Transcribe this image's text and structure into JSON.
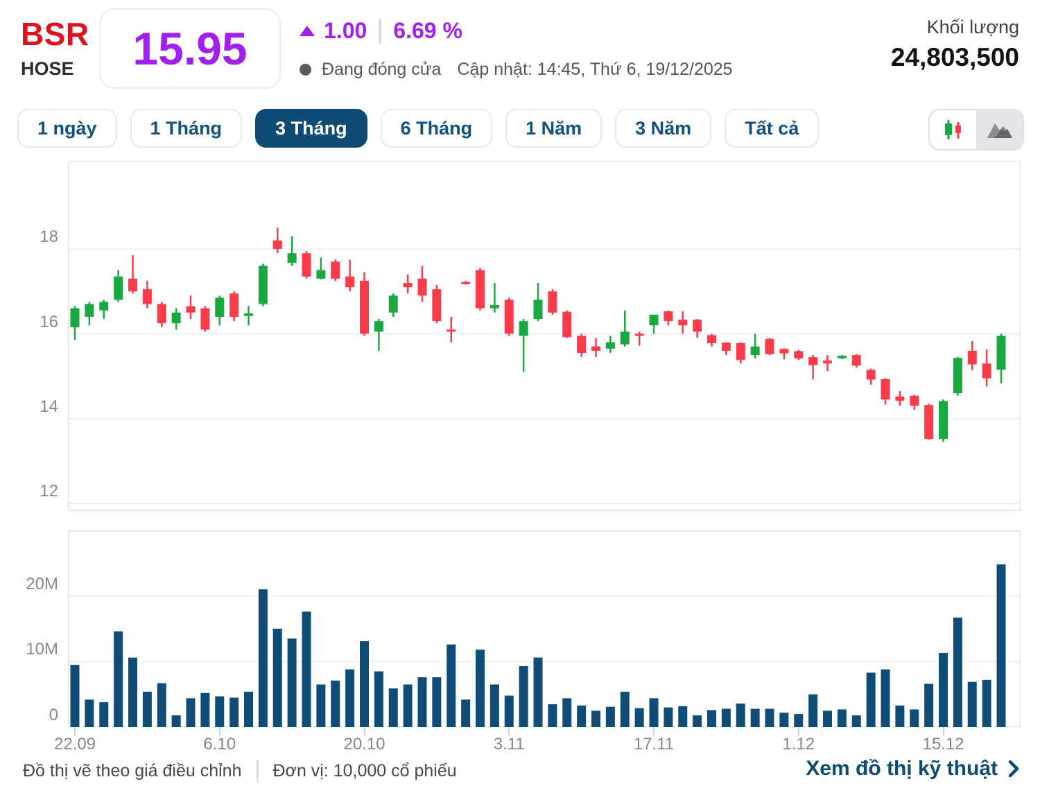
{
  "header": {
    "ticker": "BSR",
    "exchange": "HOSE",
    "price": "15.95",
    "change": "1.00",
    "change_pct": "6.69 %",
    "status": "Đang đóng cửa",
    "updated": "Cập nhật: 14:45, Thứ 6, 19/12/2025",
    "volume_label": "Khối lượng",
    "volume_value": "24,803,500"
  },
  "toolbar": {
    "ranges": [
      {
        "label": "1 ngày"
      },
      {
        "label": "1 Tháng"
      },
      {
        "label": "3 Tháng"
      },
      {
        "label": "6 Tháng"
      },
      {
        "label": "1 Năm"
      },
      {
        "label": "3 Năm"
      },
      {
        "label": "Tất cả"
      }
    ],
    "active_index": 2,
    "chart_type_toggle": {
      "options": [
        {
          "name": "candlestick"
        },
        {
          "name": "area"
        }
      ],
      "active_index": 1
    }
  },
  "footer": {
    "note_left": "Đồ thị vẽ theo giá điều chỉnh",
    "note_right": "Đơn vị: 10,000 cổ phiếu",
    "link": "Xem đồ thị kỹ thuật"
  },
  "colors": {
    "up_green": "#1aa840",
    "down_red": "#fc3b4b",
    "volume_navy": "#0f4d78",
    "price_purple": "#a21ff0",
    "ticker_red": "#e0111f",
    "navy": "#0d4a74",
    "axis_text_gray": "#86868c"
  },
  "chart_data": {
    "type": "candlestick",
    "title": "BSR 3 Tháng price chart with volume",
    "y_axis": {
      "ticks": [
        18,
        16,
        14,
        12
      ],
      "min": 11.8,
      "max": 20.1
    },
    "volume_axis": {
      "max": 30,
      "ticks": [
        {
          "v": 20,
          "label": "20M"
        },
        {
          "v": 10,
          "label": "10M"
        },
        {
          "v": 0,
          "label": "0"
        }
      ]
    },
    "x_ticks": [
      {
        "index": 0,
        "label": "22.09"
      },
      {
        "index": 10,
        "label": "6.10"
      },
      {
        "index": 20,
        "label": "20.10"
      },
      {
        "index": 30,
        "label": "3.11"
      },
      {
        "index": 40,
        "label": "17.11"
      },
      {
        "index": 50,
        "label": "1.12"
      },
      {
        "index": 60,
        "label": "15.12"
      }
    ],
    "candles_ohlc": [
      [
        16.15,
        16.65,
        15.85,
        16.6
      ],
      [
        16.4,
        16.75,
        16.2,
        16.7
      ],
      [
        16.55,
        16.8,
        16.35,
        16.75
      ],
      [
        16.8,
        17.5,
        16.75,
        17.35
      ],
      [
        17.3,
        17.85,
        16.95,
        17.0
      ],
      [
        17.05,
        17.25,
        16.6,
        16.7
      ],
      [
        16.7,
        16.75,
        16.15,
        16.25
      ],
      [
        16.25,
        16.6,
        16.1,
        16.5
      ],
      [
        16.65,
        16.9,
        16.35,
        16.5
      ],
      [
        16.6,
        16.65,
        16.05,
        16.1
      ],
      [
        16.4,
        16.9,
        16.2,
        16.85
      ],
      [
        16.95,
        17.0,
        16.3,
        16.4
      ],
      [
        16.42,
        16.65,
        16.2,
        16.48
      ],
      [
        16.7,
        17.65,
        16.65,
        17.6
      ],
      [
        18.2,
        18.5,
        17.9,
        18.0
      ],
      [
        17.67,
        18.3,
        17.6,
        17.9
      ],
      [
        17.9,
        17.95,
        17.3,
        17.35
      ],
      [
        17.3,
        17.8,
        17.28,
        17.5
      ],
      [
        17.7,
        17.75,
        17.25,
        17.3
      ],
      [
        17.35,
        17.75,
        17.0,
        17.1
      ],
      [
        17.25,
        17.45,
        15.95,
        16.0
      ],
      [
        16.05,
        16.35,
        15.6,
        16.3
      ],
      [
        16.5,
        16.95,
        16.4,
        16.9
      ],
      [
        17.2,
        17.4,
        16.95,
        17.1
      ],
      [
        17.3,
        17.6,
        16.75,
        16.9
      ],
      [
        17.05,
        17.15,
        16.25,
        16.3
      ],
      [
        16.1,
        16.4,
        15.8,
        16.05
      ],
      [
        17.22,
        17.24,
        17.16,
        17.18
      ],
      [
        17.5,
        17.55,
        16.55,
        16.6
      ],
      [
        16.6,
        17.2,
        16.5,
        16.68
      ],
      [
        16.8,
        16.85,
        15.95,
        16.0
      ],
      [
        15.95,
        16.35,
        15.1,
        16.3
      ],
      [
        16.35,
        17.2,
        16.3,
        16.8
      ],
      [
        17.0,
        17.05,
        16.45,
        16.5
      ],
      [
        16.52,
        16.55,
        15.9,
        15.92
      ],
      [
        15.95,
        16.0,
        15.45,
        15.55
      ],
      [
        15.7,
        15.9,
        15.45,
        15.6
      ],
      [
        15.65,
        15.95,
        15.55,
        15.8
      ],
      [
        15.75,
        16.55,
        15.7,
        16.05
      ],
      [
        16.0,
        16.05,
        15.72,
        15.98
      ],
      [
        16.2,
        16.45,
        16.0,
        16.45
      ],
      [
        16.53,
        16.55,
        16.2,
        16.3
      ],
      [
        16.33,
        16.53,
        16.0,
        16.2
      ],
      [
        16.33,
        16.35,
        15.9,
        16.05
      ],
      [
        15.97,
        16.0,
        15.7,
        15.78
      ],
      [
        15.79,
        15.8,
        15.5,
        15.6
      ],
      [
        15.78,
        15.8,
        15.3,
        15.38
      ],
      [
        15.5,
        16.0,
        15.42,
        15.7
      ],
      [
        15.88,
        15.9,
        15.5,
        15.52
      ],
      [
        15.64,
        15.66,
        15.4,
        15.54
      ],
      [
        15.59,
        15.62,
        15.38,
        15.42
      ],
      [
        15.45,
        15.5,
        14.93,
        15.26
      ],
      [
        15.37,
        15.5,
        15.12,
        15.3
      ],
      [
        15.42,
        15.5,
        15.4,
        15.48
      ],
      [
        15.5,
        15.52,
        15.2,
        15.25
      ],
      [
        15.15,
        15.18,
        14.8,
        14.92
      ],
      [
        14.93,
        14.95,
        14.33,
        14.45
      ],
      [
        14.52,
        14.65,
        14.3,
        14.42
      ],
      [
        14.54,
        14.56,
        14.2,
        14.3
      ],
      [
        14.32,
        14.35,
        13.5,
        13.52
      ],
      [
        13.52,
        14.45,
        13.45,
        14.41
      ],
      [
        14.6,
        15.45,
        14.54,
        15.43
      ],
      [
        15.6,
        15.83,
        15.14,
        15.28
      ],
      [
        15.3,
        15.63,
        14.76,
        14.95
      ],
      [
        15.15,
        16.0,
        14.83,
        15.95
      ]
    ],
    "volumes_m": [
      9.5,
      4.2,
      3.8,
      14.6,
      10.6,
      5.4,
      6.7,
      1.8,
      4.4,
      5.2,
      4.7,
      4.5,
      5.4,
      21.0,
      15.0,
      13.5,
      17.6,
      6.5,
      7.1,
      8.8,
      13.1,
      8.5,
      5.9,
      6.5,
      7.6,
      7.6,
      12.6,
      4.2,
      11.8,
      6.5,
      4.8,
      9.3,
      10.6,
      3.5,
      4.4,
      3.3,
      2.5,
      3.1,
      5.4,
      2.9,
      4.4,
      3.0,
      3.2,
      1.8,
      2.6,
      2.8,
      3.6,
      2.8,
      2.8,
      2.2,
      2.0,
      5.0,
      2.5,
      2.7,
      1.8,
      8.3,
      8.8,
      3.3,
      2.7,
      6.6,
      11.3,
      16.7,
      6.9,
      7.2,
      24.8
    ]
  }
}
